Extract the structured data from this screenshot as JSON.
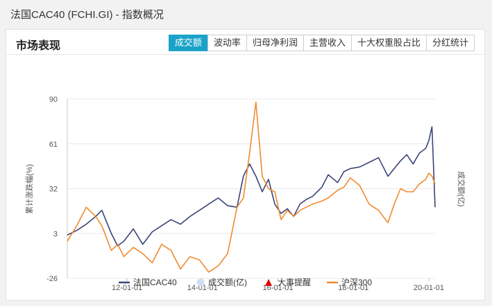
{
  "window": {
    "title": "法国CAC40 (FCHI.GI) - 指数概况"
  },
  "section": {
    "title": "市场表现"
  },
  "tabs": [
    {
      "label": "成交额",
      "active": true
    },
    {
      "label": "波动率",
      "active": false
    },
    {
      "label": "归母净利润",
      "active": false
    },
    {
      "label": "主营收入",
      "active": false
    },
    {
      "label": "十大权重股占比",
      "active": false
    },
    {
      "label": "分红统计",
      "active": false
    }
  ],
  "colors": {
    "accent": "#1aa3c8",
    "cac40": "#3a4478",
    "hs300": "#f08a30",
    "event": "#e00000",
    "volume": "#cfe0f5"
  },
  "chart_data": {
    "type": "line",
    "ylabel": "累计涨跌幅(%)",
    "y2label": "成交额(亿)",
    "yticks": [
      90,
      61,
      32,
      3,
      -26
    ],
    "ylim": [
      -26,
      90
    ],
    "xticks": [
      "12-01-01",
      "14-01-01",
      "16-01-01",
      "18-01-01",
      "20-01-01"
    ],
    "xlim": [
      "2010-06",
      "2020-03"
    ],
    "grid": true,
    "legend_position": "bottom",
    "legend": [
      {
        "label": "法国CAC40",
        "marker": "line",
        "color": "#3a4478"
      },
      {
        "label": "成交额(亿)",
        "marker": "circle",
        "color": "#cfe0f5"
      },
      {
        "label": "大事提醒",
        "marker": "triangle",
        "color": "#e00000"
      },
      {
        "label": "沪深300",
        "marker": "line",
        "color": "#f08a30"
      }
    ],
    "series": [
      {
        "name": "法国CAC40",
        "x": [
          "2010-06",
          "2010-09",
          "2010-12",
          "2011-03",
          "2011-05",
          "2011-08",
          "2011-10",
          "2011-12",
          "2012-03",
          "2012-06",
          "2012-09",
          "2012-12",
          "2013-03",
          "2013-06",
          "2013-09",
          "2013-12",
          "2014-03",
          "2014-06",
          "2014-09",
          "2014-12",
          "2015-02",
          "2015-04",
          "2015-06",
          "2015-08",
          "2015-10",
          "2015-12",
          "2016-02",
          "2016-04",
          "2016-06",
          "2016-08",
          "2016-10",
          "2016-12",
          "2017-03",
          "2017-05",
          "2017-08",
          "2017-10",
          "2017-12",
          "2018-03",
          "2018-06",
          "2018-09",
          "2018-12",
          "2019-02",
          "2019-04",
          "2019-06",
          "2019-08",
          "2019-10",
          "2019-12",
          "2020-01",
          "2020-02",
          "2020-03"
        ],
        "values": [
          2,
          5,
          9,
          14,
          18,
          3,
          -5,
          -2,
          6,
          -4,
          4,
          8,
          12,
          9,
          14,
          18,
          22,
          26,
          21,
          20,
          40,
          48,
          40,
          30,
          38,
          22,
          16,
          19,
          14,
          22,
          25,
          27,
          33,
          41,
          36,
          43,
          45,
          46,
          49,
          52,
          40,
          45,
          50,
          54,
          48,
          55,
          58,
          63,
          72,
          20
        ]
      },
      {
        "name": "沪深300",
        "x": [
          "2010-06",
          "2010-09",
          "2010-12",
          "2011-03",
          "2011-05",
          "2011-08",
          "2011-10",
          "2011-12",
          "2012-03",
          "2012-06",
          "2012-09",
          "2012-12",
          "2013-03",
          "2013-06",
          "2013-09",
          "2013-12",
          "2014-03",
          "2014-06",
          "2014-09",
          "2014-12",
          "2015-02",
          "2015-04",
          "2015-06",
          "2015-08",
          "2015-10",
          "2015-12",
          "2016-02",
          "2016-04",
          "2016-06",
          "2016-08",
          "2016-10",
          "2016-12",
          "2017-03",
          "2017-05",
          "2017-08",
          "2017-10",
          "2017-12",
          "2018-03",
          "2018-06",
          "2018-09",
          "2018-12",
          "2019-02",
          "2019-04",
          "2019-06",
          "2019-08",
          "2019-10",
          "2019-12",
          "2020-01",
          "2020-02",
          "2020-03"
        ],
        "values": [
          -2,
          8,
          20,
          14,
          8,
          -8,
          -4,
          -12,
          -6,
          -10,
          -16,
          -4,
          -8,
          -20,
          -12,
          -14,
          -22,
          -18,
          -10,
          20,
          26,
          55,
          88,
          40,
          32,
          30,
          12,
          18,
          14,
          18,
          20,
          22,
          24,
          26,
          31,
          33,
          39,
          34,
          22,
          18,
          10,
          22,
          32,
          30,
          30,
          35,
          38,
          42,
          40,
          35
        ]
      }
    ]
  }
}
